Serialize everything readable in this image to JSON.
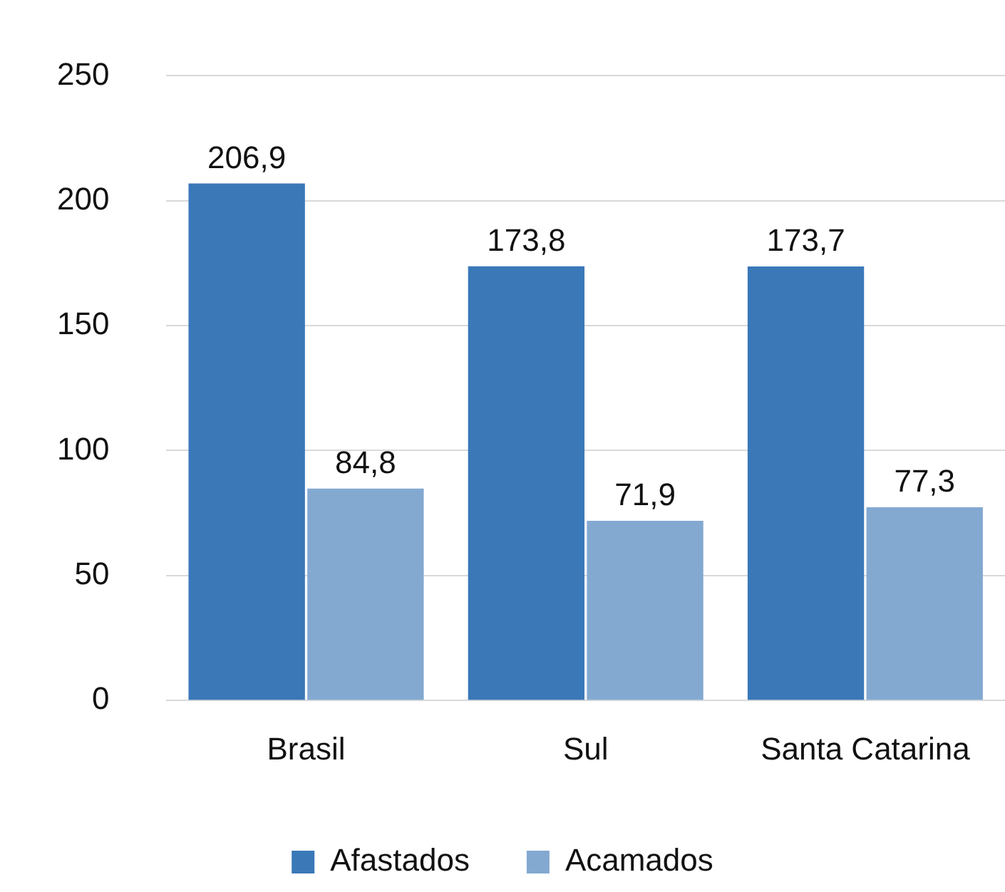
{
  "chart_data": {
    "type": "bar",
    "categories": [
      "Brasil",
      "Sul",
      "Santa Catarina"
    ],
    "series": [
      {
        "name": "Afastados",
        "color": "#3a78b8",
        "values": [
          206.9,
          173.8,
          173.7
        ],
        "value_labels": [
          "206,9",
          "173,8",
          "173,7"
        ]
      },
      {
        "name": "Acamados",
        "color": "#83a9d1",
        "values": [
          84.8,
          71.9,
          77.3
        ],
        "value_labels": [
          "84,8",
          "71,9",
          "77,3"
        ]
      }
    ],
    "ylim": [
      0,
      250
    ],
    "yticks": [
      0,
      50,
      100,
      150,
      200,
      250
    ],
    "grid": "y",
    "legend": "bottom"
  }
}
